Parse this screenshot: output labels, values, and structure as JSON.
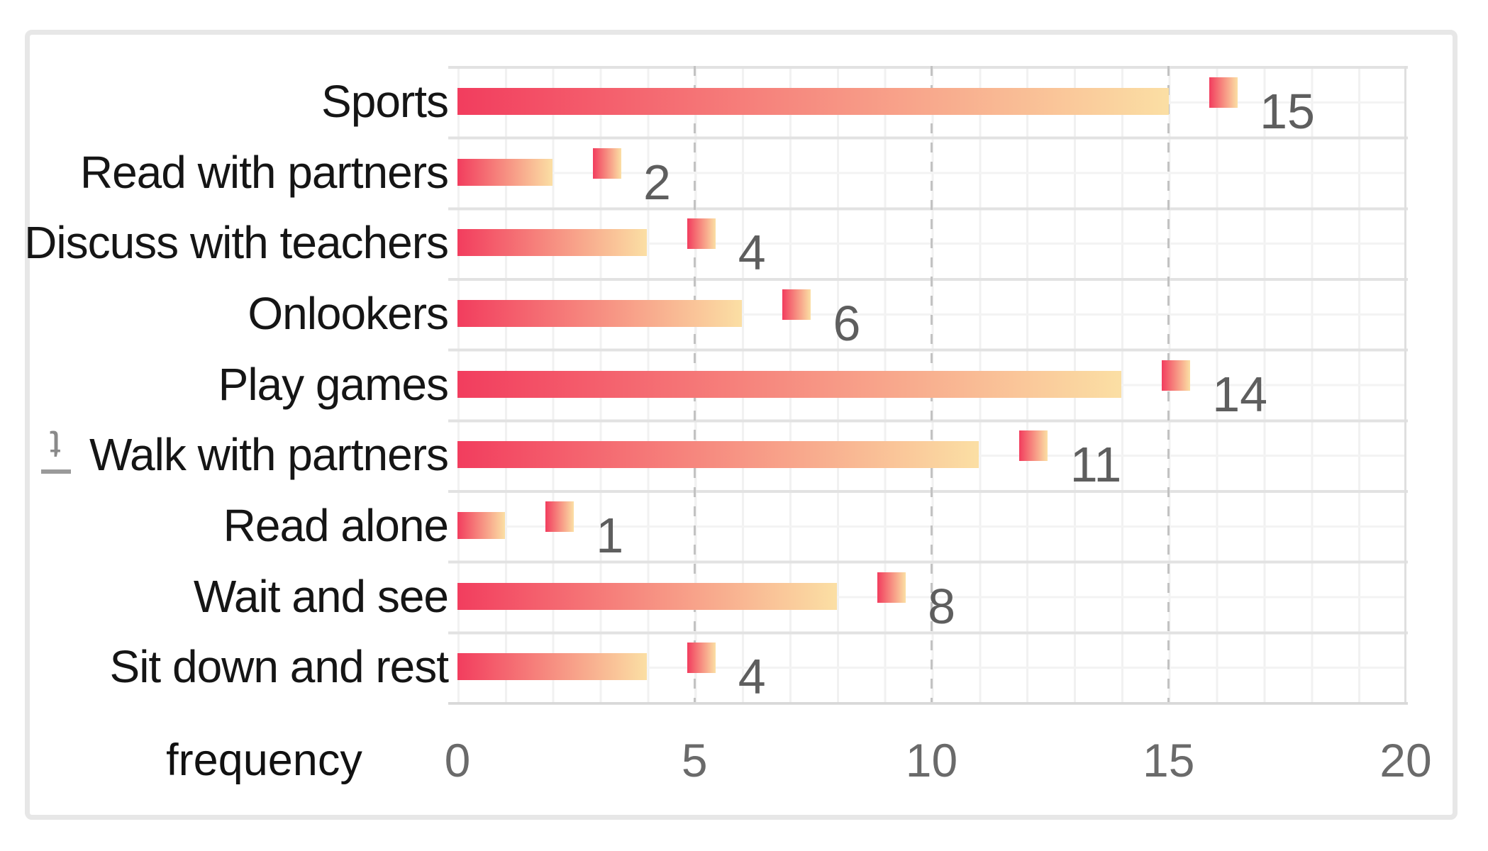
{
  "chart_data": {
    "type": "bar",
    "orientation": "horizontal",
    "title": "",
    "categories": [
      "Sports",
      "Read with partners",
      "Discuss with teachers",
      "Onlookers",
      "Play games",
      "Walk with partners",
      "Read alone",
      "Wait and see",
      "Sit down and rest"
    ],
    "values": [
      15,
      2,
      4,
      6,
      14,
      11,
      1,
      8,
      4
    ],
    "data_labels": [
      "15",
      "2",
      "4",
      "6",
      "14",
      "11",
      "1",
      "8",
      "4"
    ],
    "xlabel": "frequency",
    "ylabel": "",
    "x_ticks": [
      "0",
      "5",
      "10",
      "15",
      "20"
    ],
    "x_tick_values": [
      0,
      5,
      10,
      15,
      20
    ],
    "xlim": [
      0,
      20
    ],
    "grid": "fine minor grid; dashed vertical major gridlines at 5, 10, 15",
    "legend_position": "none",
    "bar_gradient_start": "#f23d5e",
    "bar_gradient_end": "#fbdfa4",
    "data_label_color": "#5e5e5e",
    "marker_shape": "square",
    "marker_offset_units": 1.15,
    "side_axis_glyph": "t"
  }
}
